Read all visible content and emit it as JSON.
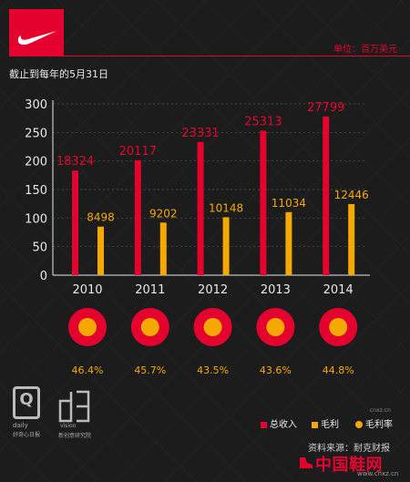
{
  "header": {
    "unit": "单位：百万美元",
    "subtitle": "截止到每年的5月31日"
  },
  "chart_data": {
    "type": "bar",
    "categories": [
      "2010",
      "2011",
      "2012",
      "2013",
      "2014"
    ],
    "series": [
      {
        "name": "总收入",
        "values": [
          18324,
          20117,
          23331,
          25313,
          27799
        ],
        "color": "#e4032e"
      },
      {
        "name": "毛利",
        "values": [
          8498,
          9202,
          10148,
          11034,
          12446
        ],
        "color": "#f5a800"
      }
    ],
    "margin_series": {
      "name": "毛利率",
      "labels": [
        "46.4%",
        "45.7%",
        "43.5%",
        "43.6%",
        "44.8%"
      ],
      "color": "#f5a800"
    },
    "yticks": [
      "0",
      "50",
      "100",
      "150",
      "200",
      "250",
      "300"
    ],
    "ylim": [
      0,
      30000
    ],
    "grid": true
  },
  "legend": {
    "revenue": "总收入",
    "gross_profit": "毛利",
    "margin": "毛利率"
  },
  "branding": {
    "q_letter": "Q",
    "q_line1": "daily",
    "q_line2": "好奇心日报",
    "studio_line1": "vision",
    "studio_line2": "新创意研究院",
    "source": "资料来源：耐克财报",
    "watermark": "中国鞋网",
    "watermark_url": "www.cnxz.cn",
    "vertical_text": "cnxz.cn"
  }
}
